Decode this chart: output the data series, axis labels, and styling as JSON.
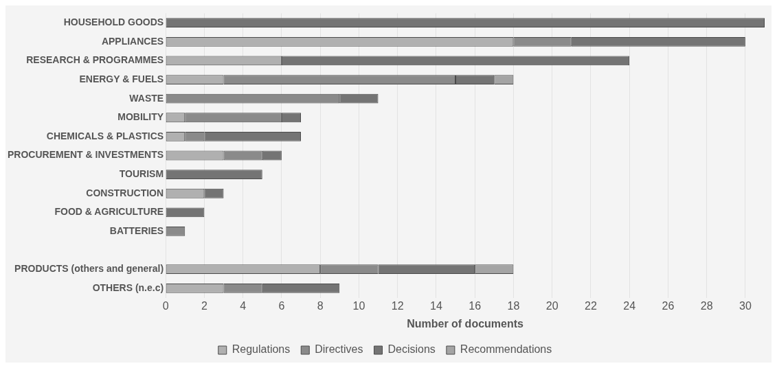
{
  "chart_data": {
    "type": "bar",
    "orientation": "horizontal",
    "stacked": true,
    "xlabel": "Number of documents",
    "categories": [
      "HOUSEHOLD GOODS",
      "APPLIANCES",
      "RESEARCH & PROGRAMMES",
      "ENERGY & FUELS",
      "WASTE",
      "MOBILITY",
      "CHEMICALS & PLASTICS",
      "PROCUREMENT & INVESTMENTS",
      "TOURISM",
      "CONSTRUCTION",
      "FOOD & AGRICULTURE",
      "BATTERIES",
      null,
      "PRODUCTS (others and general)",
      "OTHERS (n.e.c)"
    ],
    "series": [
      {
        "name": "Regulations",
        "color": "#b0b0b0",
        "values": [
          0,
          18,
          6,
          3,
          0,
          1,
          1,
          3,
          0,
          2,
          0,
          0,
          null,
          8,
          3
        ]
      },
      {
        "name": "Directives",
        "color": "#8a8a8a",
        "values": [
          0,
          3,
          0,
          12,
          9,
          5,
          1,
          2,
          0,
          0,
          0,
          1,
          null,
          3,
          2
        ]
      },
      {
        "name": "Decisions",
        "color": "#747474",
        "values": [
          31,
          9,
          18,
          2,
          2,
          1,
          5,
          1,
          5,
          1,
          2,
          0,
          null,
          5,
          4
        ]
      },
      {
        "name": "Recommendations",
        "color": "#a4a4a4",
        "values": [
          0,
          0,
          0,
          1,
          0,
          0,
          0,
          0,
          0,
          0,
          0,
          0,
          null,
          2,
          0
        ]
      }
    ],
    "xlim": [
      0,
      31
    ],
    "xticks": [
      0,
      2,
      4,
      6,
      8,
      10,
      12,
      14,
      16,
      18,
      20,
      22,
      24,
      26,
      28,
      30
    ],
    "grid": "x",
    "legend": "bottom"
  }
}
